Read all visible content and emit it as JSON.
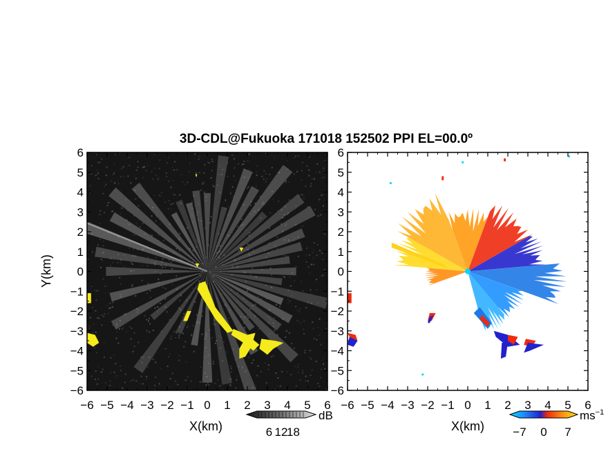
{
  "title": "3D-CDL@Fukuoka 171018 152502 PPI EL=00.0º",
  "chart_data": [
    {
      "type": "heatmap",
      "panel": "reflectivity",
      "xlabel": "X(km)",
      "ylabel": "Y(km)",
      "xlim": [
        -6,
        6
      ],
      "ylim": [
        -6,
        6
      ],
      "xticks": [
        "−6",
        "−5",
        "−4",
        "−3",
        "−2",
        "−1",
        "0",
        "1",
        "2",
        "3",
        "4",
        "5",
        "6"
      ],
      "yticks": [
        "6",
        "5",
        "4",
        "3",
        "2",
        "1",
        "0",
        "−1",
        "−2",
        "−3",
        "−4",
        "−5",
        "−6"
      ],
      "colorbar": {
        "unit": "dB",
        "ticks": [
          "6",
          "12",
          "18"
        ],
        "tick_values": [
          6,
          12,
          18
        ]
      },
      "colors": {
        "background": "#161616",
        "echo": "#9c9c9c",
        "strong": "#f5ea1c"
      },
      "rays_deg": [
        -165,
        -150,
        -140,
        -125,
        -115,
        -100,
        -90,
        -80,
        -70,
        -60,
        -52,
        -45,
        -38,
        -30,
        -22,
        -15,
        -8,
        0,
        8,
        15,
        22,
        30,
        38,
        45,
        52,
        60,
        68,
        75,
        82,
        90,
        98,
        105,
        112,
        120,
        130,
        140,
        150,
        160,
        170,
        180
      ],
      "echo_regions": [
        {
          "points": [
            [
              -0.4,
              -0.6
            ],
            [
              -0.1,
              -0.5
            ],
            [
              0.4,
              -1.8
            ],
            [
              1.0,
              -2.6
            ],
            [
              1.3,
              -3.0
            ],
            [
              1.0,
              -3.1
            ],
            [
              0.4,
              -2.4
            ],
            [
              -0.2,
              -1.4
            ],
            [
              -0.5,
              -0.9
            ]
          ]
        },
        {
          "points": [
            [
              1.3,
              -2.9
            ],
            [
              2.0,
              -3.2
            ],
            [
              2.6,
              -3.7
            ],
            [
              2.3,
              -4.0
            ],
            [
              1.8,
              -3.6
            ],
            [
              1.2,
              -3.2
            ]
          ]
        },
        {
          "points": [
            [
              2.0,
              -3.2
            ],
            [
              2.4,
              -3.1
            ],
            [
              2.2,
              -3.8
            ],
            [
              1.9,
              -4.3
            ],
            [
              1.6,
              -4.4
            ],
            [
              1.6,
              -3.9
            ]
          ]
        },
        {
          "points": [
            [
              2.7,
              -3.4
            ],
            [
              3.4,
              -3.5
            ],
            [
              3.8,
              -3.6
            ],
            [
              3.3,
              -3.9
            ],
            [
              3.0,
              -4.2
            ],
            [
              2.6,
              -3.9
            ]
          ]
        },
        {
          "points": [
            [
              -6,
              -1.1
            ],
            [
              -5.8,
              -1.1
            ],
            [
              -5.8,
              -1.6
            ],
            [
              -6,
              -1.6
            ]
          ]
        },
        {
          "points": [
            [
              -6,
              -3.1
            ],
            [
              -5.6,
              -3.2
            ],
            [
              -5.4,
              -3.6
            ],
            [
              -5.7,
              -3.8
            ],
            [
              -6,
              -3.6
            ]
          ]
        },
        {
          "points": [
            [
              -1.0,
              -2.0
            ],
            [
              -0.8,
              -2.0
            ],
            [
              -1.0,
              -2.5
            ],
            [
              -1.2,
              -2.5
            ]
          ]
        },
        {
          "points": [
            [
              1.6,
              1.2
            ],
            [
              1.8,
              1.2
            ],
            [
              1.7,
              1.0
            ]
          ]
        },
        {
          "points": [
            [
              -0.6,
              0.4
            ],
            [
              -0.4,
              0.4
            ],
            [
              -0.5,
              0.2
            ]
          ]
        },
        {
          "points": [
            [
              -0.6,
              4.9
            ],
            [
              -0.5,
              4.9
            ],
            [
              -0.55,
              4.75
            ]
          ]
        }
      ]
    },
    {
      "type": "heatmap",
      "panel": "radial-velocity",
      "xlabel": "X(km)",
      "xlim": [
        -6,
        6
      ],
      "ylim": [
        -6,
        6
      ],
      "xticks": [
        "−6",
        "−5",
        "−4",
        "−3",
        "−2",
        "−1",
        "0",
        "1",
        "2",
        "3",
        "4",
        "5",
        "6"
      ],
      "yticks": [
        "6",
        "5",
        "4",
        "3",
        "2",
        "1",
        "0",
        "−1",
        "−2",
        "−3",
        "−4",
        "−5",
        "−6"
      ],
      "colorbar": {
        "unit": "ms",
        "unit_exponent": "−1",
        "ticks": [
          "−7",
          "0",
          "7"
        ],
        "tick_values": [
          -7,
          0,
          7
        ]
      },
      "colors": {
        "background": "#ffffff",
        "far_negative": "#00d8ff",
        "negative": "#1e78e6",
        "near_negative": "#2222cc",
        "near_positive": "#ee2a10",
        "positive": "#ff9a10",
        "far_positive": "#ffd21a"
      },
      "sectors": [
        {
          "from_deg": 110,
          "to_deg": 150,
          "range_km": 4.3,
          "color": "#ffb020"
        },
        {
          "from_deg": 150,
          "to_deg": 175,
          "range_km": 3.8,
          "color": "#ffd81a"
        },
        {
          "from_deg": 175,
          "to_deg": 200,
          "range_km": 2.2,
          "color": "#ff8c10"
        },
        {
          "from_deg": 70,
          "to_deg": 110,
          "range_km": 3.2,
          "color": "#ff9a10"
        },
        {
          "from_deg": 30,
          "to_deg": 70,
          "range_km": 3.8,
          "color": "#ee2a10"
        },
        {
          "from_deg": 5,
          "to_deg": 30,
          "range_km": 4.0,
          "color": "#2222cc"
        },
        {
          "from_deg": -20,
          "to_deg": 5,
          "range_km": 5.0,
          "color": "#1e78e6"
        },
        {
          "from_deg": -50,
          "to_deg": -20,
          "range_km": 3.2,
          "color": "#1e90ff"
        },
        {
          "from_deg": -75,
          "to_deg": -50,
          "range_km": 3.3,
          "color": "#30b0ff"
        }
      ],
      "features": [
        {
          "color": "#1e78e6",
          "points": [
            [
              0.6,
              -1.8
            ],
            [
              1.2,
              -2.6
            ],
            [
              1.0,
              -2.9
            ],
            [
              0.3,
              -2.1
            ]
          ]
        },
        {
          "color": "#ee2a10",
          "points": [
            [
              0.7,
              -2.2
            ],
            [
              1.1,
              -2.6
            ],
            [
              1.0,
              -2.8
            ],
            [
              0.6,
              -2.4
            ]
          ]
        },
        {
          "color": "#2222cc",
          "points": [
            [
              1.3,
              -3.0
            ],
            [
              2.0,
              -3.2
            ],
            [
              2.6,
              -3.7
            ],
            [
              2.0,
              -3.8
            ],
            [
              1.4,
              -3.3
            ]
          ]
        },
        {
          "color": "#ee2a10",
          "points": [
            [
              2.0,
              -3.2
            ],
            [
              2.5,
              -3.3
            ],
            [
              2.3,
              -3.7
            ],
            [
              2.0,
              -3.5
            ]
          ]
        },
        {
          "color": "#2222cc",
          "points": [
            [
              1.7,
              -3.6
            ],
            [
              2.0,
              -3.6
            ],
            [
              1.9,
              -4.3
            ],
            [
              1.65,
              -4.4
            ]
          ]
        },
        {
          "color": "#ee2a10",
          "points": [
            [
              2.9,
              -3.4
            ],
            [
              3.4,
              -3.5
            ],
            [
              3.2,
              -3.8
            ],
            [
              2.8,
              -3.7
            ]
          ]
        },
        {
          "color": "#2222cc",
          "points": [
            [
              3.0,
              -3.6
            ],
            [
              3.8,
              -3.7
            ],
            [
              3.1,
              -4.0
            ],
            [
              2.8,
              -4.1
            ]
          ]
        },
        {
          "color": "#ee2a10",
          "points": [
            [
              -6,
              -3.1
            ],
            [
              -5.6,
              -3.2
            ],
            [
              -5.5,
              -3.5
            ],
            [
              -5.8,
              -3.5
            ]
          ]
        },
        {
          "color": "#2222cc",
          "points": [
            [
              -5.9,
              -3.3
            ],
            [
              -5.5,
              -3.5
            ],
            [
              -5.7,
              -3.8
            ],
            [
              -6,
              -3.7
            ]
          ]
        },
        {
          "color": "#ee2a10",
          "points": [
            [
              -6,
              -1.1
            ],
            [
              -5.8,
              -1.1
            ],
            [
              -5.8,
              -1.6
            ],
            [
              -6,
              -1.6
            ]
          ]
        },
        {
          "color": "#ee2a10",
          "points": [
            [
              -1.9,
              -2.1
            ],
            [
              -1.6,
              -2.1
            ],
            [
              -1.8,
              -2.5
            ],
            [
              -2.0,
              -2.5
            ]
          ]
        },
        {
          "color": "#2222cc",
          "points": [
            [
              -1.9,
              -2.3
            ],
            [
              -1.7,
              -2.2
            ],
            [
              -1.9,
              -2.6
            ],
            [
              -2.0,
              -2.6
            ]
          ]
        },
        {
          "color": "#ee2a10",
          "points": [
            [
              -1.3,
              4.8
            ],
            [
              -1.2,
              4.8
            ],
            [
              -1.2,
              4.6
            ],
            [
              -1.3,
              4.6
            ]
          ]
        },
        {
          "color": "#ee2a10",
          "points": [
            [
              1.8,
              5.7
            ],
            [
              1.9,
              5.7
            ],
            [
              1.9,
              5.55
            ],
            [
              1.8,
              5.55
            ]
          ]
        },
        {
          "color": "#00d8ff",
          "points": [
            [
              -0.3,
              5.55
            ],
            [
              -0.2,
              5.55
            ],
            [
              -0.2,
              5.45
            ],
            [
              -0.3,
              5.45
            ]
          ]
        },
        {
          "color": "#00d8ff",
          "points": [
            [
              -3.9,
              4.5
            ],
            [
              -3.8,
              4.5
            ],
            [
              -3.8,
              4.4
            ],
            [
              -3.9,
              4.4
            ]
          ]
        },
        {
          "color": "#00d8ff",
          "points": [
            [
              -2.3,
              -5.15
            ],
            [
              -2.2,
              -5.15
            ],
            [
              -2.2,
              -5.25
            ],
            [
              -2.3,
              -5.25
            ]
          ]
        },
        {
          "color": "#00d8ff",
          "points": [
            [
              5.0,
              5.85
            ],
            [
              5.1,
              5.85
            ],
            [
              5.1,
              5.75
            ],
            [
              5.0,
              5.75
            ]
          ]
        }
      ]
    }
  ]
}
